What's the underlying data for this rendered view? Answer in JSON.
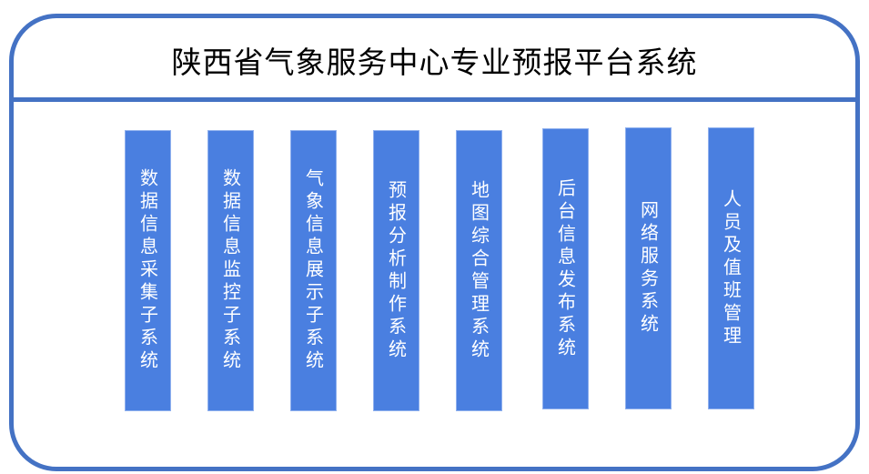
{
  "title": "陕西省气象服务中心专业预报平台系统",
  "colors": {
    "border": "#4472C4",
    "box": "#4A7FE0",
    "box_text": "#FFFFFF"
  },
  "modules": [
    "数据信息采集子系统",
    "数据信息监控子系统",
    "气象信息展示子系统",
    "预报分析制作系统",
    "地图综合管理系统",
    "后台信息发布系统",
    "网络服务系统",
    "人员及值班管理"
  ]
}
